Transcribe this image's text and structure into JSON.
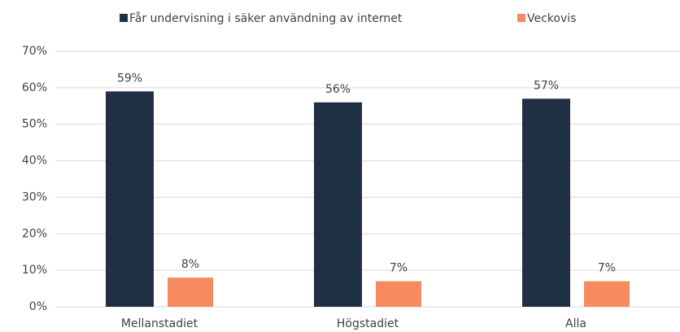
{
  "chart_data": {
    "type": "bar",
    "categories": [
      "Mellanstadiet",
      "Högstadiet",
      "Alla"
    ],
    "series": [
      {
        "name": "Får undervisning i säker användning av internet",
        "color": "#1f3045",
        "values": [
          59,
          56,
          57
        ],
        "value_labels": [
          "59%",
          "56%",
          "57%"
        ]
      },
      {
        "name": "Veckovis",
        "color": "#f58b5f",
        "values": [
          8,
          7,
          7
        ],
        "value_labels": [
          "8%",
          "7%",
          "7%"
        ]
      }
    ],
    "ylim": [
      0,
      70
    ],
    "yticks": [
      {
        "value": 0,
        "label": "0%"
      },
      {
        "value": 10,
        "label": "10%"
      },
      {
        "value": 20,
        "label": "20%"
      },
      {
        "value": 30,
        "label": "30%"
      },
      {
        "value": 40,
        "label": "40%"
      },
      {
        "value": 50,
        "label": "50%"
      },
      {
        "value": 60,
        "label": "60%"
      },
      {
        "value": 70,
        "label": "70%"
      }
    ],
    "grid": true,
    "legend": "top"
  }
}
